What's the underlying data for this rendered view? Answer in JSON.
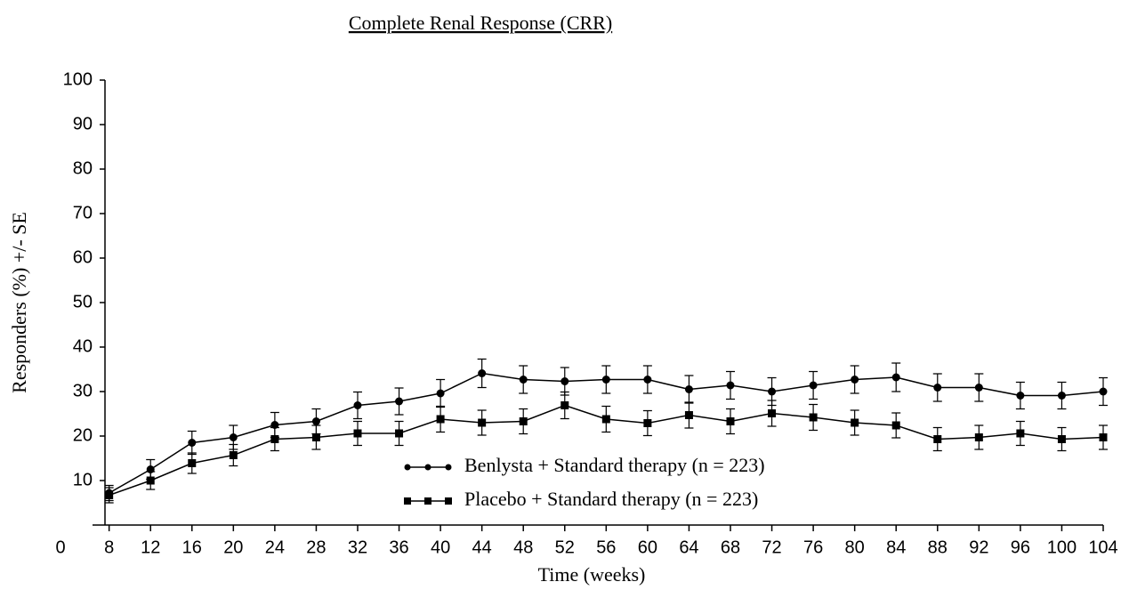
{
  "chart_data": {
    "type": "line",
    "title": "Complete Renal Response (CRR)",
    "x_label": "Time (weeks)",
    "y_label": "Responders (%) +/- SE",
    "x": [
      8,
      12,
      16,
      20,
      24,
      28,
      32,
      36,
      40,
      44,
      48,
      52,
      56,
      60,
      64,
      68,
      72,
      76,
      80,
      84,
      88,
      92,
      96,
      100,
      104
    ],
    "series": [
      {
        "name": "Benlysta + Standard therapy (n = 223)",
        "color": "#000000",
        "marker": "circle",
        "values": [
          7.2,
          12.5,
          18.5,
          19.7,
          22.5,
          23.3,
          26.9,
          27.8,
          29.6,
          34.1,
          32.7,
          32.3,
          32.7,
          32.7,
          30.5,
          31.4,
          30.0,
          31.4,
          32.7,
          33.2,
          30.9,
          30.9,
          29.1,
          29.1,
          30.0
        ],
        "errors": [
          1.7,
          2.2,
          2.6,
          2.7,
          2.8,
          2.8,
          3.0,
          3.0,
          3.1,
          3.2,
          3.1,
          3.1,
          3.1,
          3.1,
          3.1,
          3.1,
          3.1,
          3.1,
          3.1,
          3.2,
          3.1,
          3.1,
          3.0,
          3.0,
          3.1
        ]
      },
      {
        "name": "Placebo + Standard therapy (n = 223)",
        "color": "#000000",
        "marker": "square",
        "values": [
          6.7,
          10.0,
          13.9,
          15.7,
          19.3,
          19.7,
          20.6,
          20.6,
          23.8,
          23.0,
          23.3,
          26.9,
          23.8,
          22.9,
          24.7,
          23.3,
          25.1,
          24.2,
          23.0,
          22.4,
          19.3,
          19.7,
          20.6,
          19.3,
          19.7
        ],
        "errors": [
          1.7,
          2.0,
          2.3,
          2.4,
          2.6,
          2.7,
          2.7,
          2.7,
          2.9,
          2.8,
          2.8,
          3.0,
          2.9,
          2.8,
          2.9,
          2.8,
          2.9,
          2.9,
          2.8,
          2.8,
          2.6,
          2.7,
          2.7,
          2.6,
          2.7
        ]
      }
    ],
    "xlim": [
      7.6,
      104
    ],
    "ylim": [
      0,
      100
    ],
    "xticks": [
      8,
      12,
      16,
      20,
      24,
      28,
      32,
      36,
      40,
      44,
      48,
      52,
      56,
      60,
      64,
      68,
      72,
      76,
      80,
      84,
      88,
      92,
      96,
      100,
      104
    ],
    "yticks": [
      0,
      10,
      20,
      30,
      40,
      50,
      60,
      70,
      80,
      90,
      100
    ],
    "grid": false,
    "legend": "bottom-center"
  }
}
